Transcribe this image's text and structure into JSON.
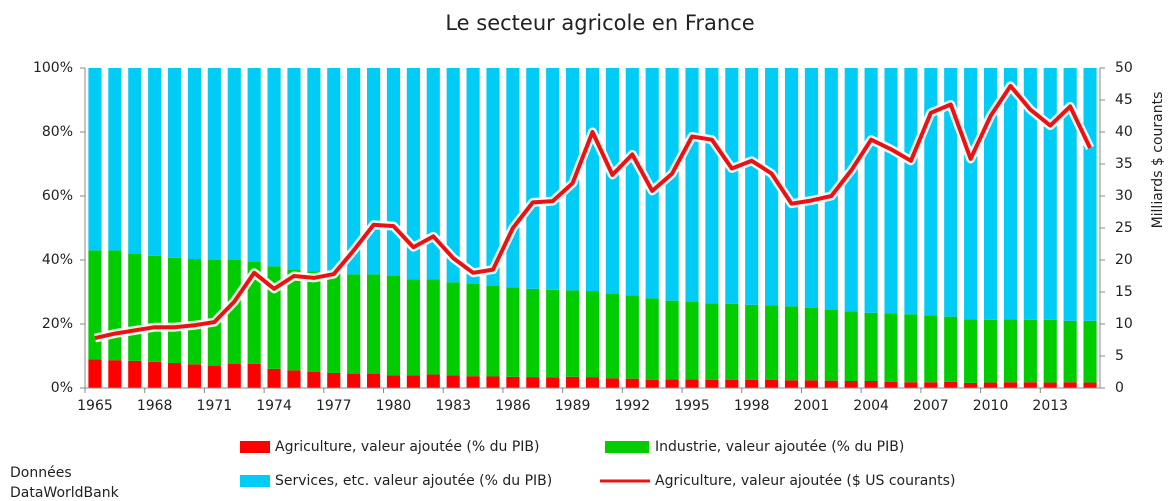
{
  "chart_data": {
    "type": "stacked_bar_line",
    "title": "Le secteur agricole en France",
    "y2_label": "Milliards $ courants",
    "source": [
      "Données",
      "DataWorldBank"
    ],
    "categories": [
      "1965",
      null,
      null,
      "1968",
      null,
      null,
      "1971",
      null,
      null,
      "1974",
      null,
      null,
      "1977",
      null,
      null,
      "1980",
      null,
      null,
      "1983",
      null,
      null,
      "1986",
      null,
      null,
      "1989",
      null,
      null,
      "1992",
      null,
      null,
      "1995",
      null,
      null,
      "1998",
      null,
      null,
      "2001",
      null,
      null,
      "2004",
      null,
      null,
      "2007",
      null,
      null,
      "2010",
      null,
      null,
      "2013",
      null,
      null
    ],
    "series": [
      {
        "name": "Agriculture, valeur ajoutée (% du PIB)",
        "color": "#ff0000",
        "kind": "bar",
        "values": [
          9,
          8.7,
          8.5,
          8.2,
          7.8,
          7.4,
          7,
          7.5,
          7.6,
          6,
          5.5,
          5,
          4.7,
          4.5,
          4.5,
          4,
          4,
          4.2,
          4,
          3.7,
          3.6,
          3.5,
          3.4,
          3.3,
          3.5,
          3.4,
          3,
          2.9,
          2.6,
          2.7,
          2.7,
          2.6,
          2.6,
          2.6,
          2.6,
          2.4,
          2.4,
          2.3,
          2.2,
          2.2,
          1.9,
          1.8,
          1.8,
          1.9,
          1.6,
          1.7,
          1.8,
          1.8,
          1.7,
          1.8,
          1.7
        ]
      },
      {
        "name": "Industrie, valeur ajoutée (% du PIB)",
        "color": "#00cc00",
        "kind": "bar",
        "values": [
          34,
          34.3,
          33.5,
          33.1,
          32.9,
          32.9,
          33,
          32.5,
          31.9,
          32,
          31.5,
          31.5,
          31.3,
          31,
          31,
          31,
          30,
          29.8,
          29,
          28.8,
          28.4,
          28,
          27.6,
          27.4,
          27,
          26.9,
          26.5,
          26.1,
          25.4,
          24.6,
          24.3,
          23.9,
          23.7,
          23.4,
          23.2,
          23.1,
          22.6,
          22.2,
          21.8,
          21.3,
          21.4,
          21.2,
          20.9,
          20.4,
          19.9,
          19.6,
          19.7,
          19.5,
          19.6,
          19.2,
          19.3
        ]
      },
      {
        "name": "Services, etc. valeur ajoutée (% du PIB)",
        "color": "#00ccf5",
        "kind": "bar",
        "values": [
          57,
          57,
          58,
          58.7,
          59.3,
          59.7,
          60,
          60,
          60.5,
          62,
          63,
          63.5,
          64,
          64.5,
          64.5,
          65,
          66,
          66,
          67,
          67.5,
          68,
          68.5,
          69,
          69.3,
          69.5,
          69.7,
          70.5,
          71,
          72,
          72.7,
          73,
          73.5,
          73.7,
          74,
          74.2,
          74.5,
          75,
          75.5,
          76,
          76.5,
          76.7,
          77,
          77.3,
          77.7,
          78.5,
          78.7,
          78.5,
          78.7,
          78.7,
          79,
          79
        ]
      },
      {
        "name": "Agriculture, valeur ajoutée ($ US courants)",
        "color": "#ee1111",
        "kind": "line",
        "axis": "y2",
        "values": [
          7.8,
          8.5,
          9,
          9.5,
          9.5,
          9.8,
          10.3,
          13.5,
          18,
          15.5,
          17.5,
          17.2,
          17.8,
          21.5,
          25.5,
          25.3,
          22,
          23.7,
          20.3,
          18,
          18.5,
          25,
          29,
          29.2,
          32,
          40,
          33.3,
          36.5,
          30.8,
          33.5,
          39.3,
          38.8,
          34.3,
          35.5,
          33.5,
          28.8,
          29.3,
          30,
          34,
          38.8,
          37.3,
          35.5,
          43,
          44.3,
          35.8,
          42.5,
          47.2,
          43.5,
          41,
          44,
          37.5
        ]
      }
    ],
    "ylim": [
      0,
      100
    ],
    "yticks": [
      {
        "value": 0,
        "label": "0%"
      },
      {
        "value": 20,
        "label": "20%"
      },
      {
        "value": 40,
        "label": "40%"
      },
      {
        "value": 60,
        "label": "60%"
      },
      {
        "value": 80,
        "label": "80%"
      },
      {
        "value": 100,
        "label": "100%"
      }
    ],
    "y2lim": [
      0,
      50
    ],
    "y2ticks": [
      0,
      5,
      10,
      15,
      20,
      25,
      30,
      35,
      40,
      45,
      50
    ]
  }
}
